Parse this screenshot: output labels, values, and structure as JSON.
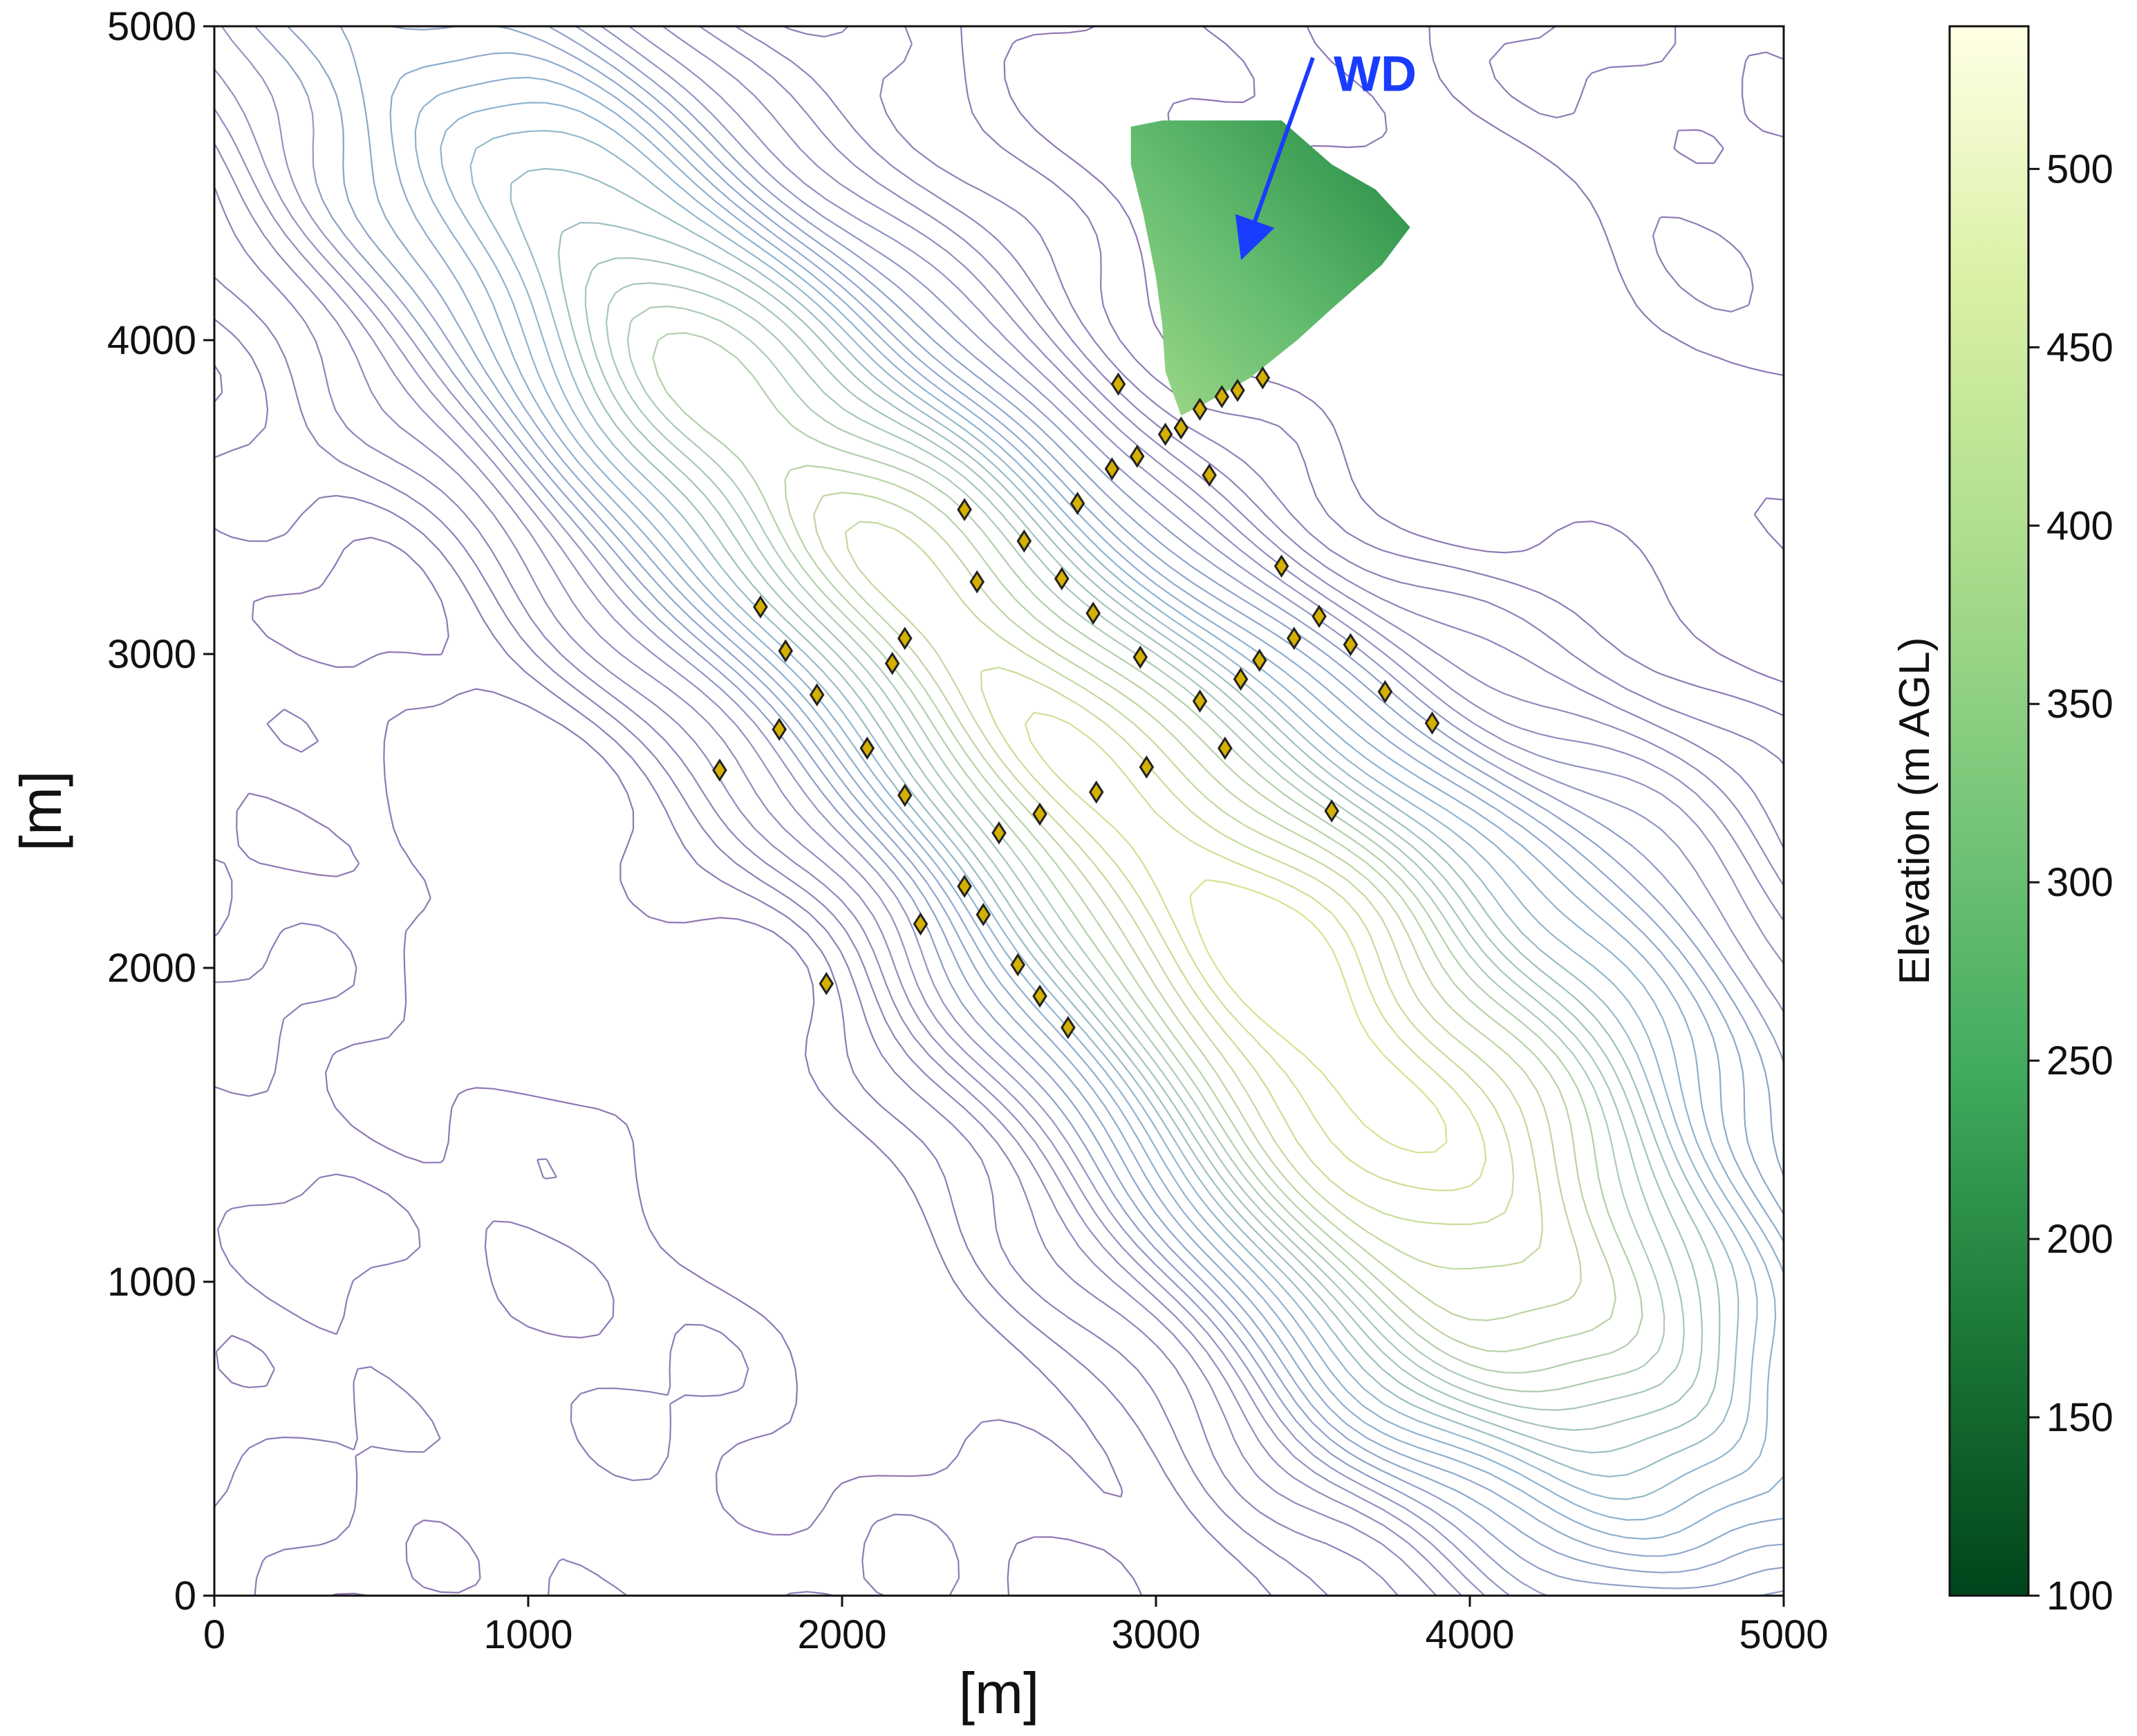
{
  "chart_data": {
    "type": "scatter",
    "xlabel": "[m]",
    "ylabel": "[m]",
    "xlim": [
      0,
      5000
    ],
    "ylim": [
      0,
      5000
    ],
    "x_ticks": [
      "0",
      "1000",
      "2000",
      "3000",
      "4000",
      "5000"
    ],
    "y_ticks": [
      "0",
      "1000",
      "2000",
      "3000",
      "4000",
      "5000"
    ],
    "grid": false,
    "colorbar": {
      "label": "Elevation (m AGL)",
      "range": [
        100,
        540
      ],
      "ticks": [
        "100",
        "150",
        "200",
        "250",
        "300",
        "350",
        "400",
        "450",
        "500"
      ],
      "colormap": [
        "#00441b",
        "#1b7837",
        "#41ab5d",
        "#78c679",
        "#addd8e",
        "#d9f0a3",
        "#ffffe5"
      ]
    },
    "annotation": {
      "text": "WD",
      "color": "#1a3cff",
      "arrow_from": [
        3500,
        4900
      ],
      "arrow_to": [
        3280,
        4280
      ]
    },
    "contours": {
      "color_low": "#7b5fa8",
      "color_mid": "#7aa6c8",
      "color_high": "#c8e07a",
      "levels": [
        110,
        125,
        140,
        155,
        170,
        185,
        200,
        215,
        230,
        245,
        260,
        275,
        290,
        305,
        320,
        335,
        350,
        365,
        380,
        395,
        410,
        425,
        440,
        455,
        470,
        485,
        500
      ]
    },
    "shaded_region": {
      "polygon": [
        [
          2920,
          4680
        ],
        [
          3020,
          4700
        ],
        [
          3400,
          4700
        ],
        [
          3560,
          4560
        ],
        [
          3700,
          4480
        ],
        [
          3810,
          4360
        ],
        [
          3720,
          4240
        ],
        [
          3560,
          4100
        ],
        [
          3450,
          4000
        ],
        [
          3300,
          3880
        ],
        [
          3160,
          3800
        ],
        [
          3080,
          3760
        ],
        [
          3030,
          3900
        ],
        [
          3020,
          4050
        ],
        [
          3000,
          4200
        ],
        [
          2960,
          4400
        ],
        [
          2920,
          4560
        ]
      ],
      "elevation_lowest": 215,
      "elevation_highest": 370
    },
    "turbines": {
      "marker": "diamond",
      "fill": "#d4b000",
      "stroke": "#222222",
      "points": [
        [
          2880,
          3860
        ],
        [
          3340,
          3880
        ],
        [
          3260,
          3840
        ],
        [
          3210,
          3820
        ],
        [
          3140,
          3780
        ],
        [
          3080,
          3720
        ],
        [
          3030,
          3700
        ],
        [
          2940,
          3630
        ],
        [
          2860,
          3590
        ],
        [
          3170,
          3570
        ],
        [
          2750,
          3480
        ],
        [
          2390,
          3460
        ],
        [
          2580,
          3360
        ],
        [
          3400,
          3280
        ],
        [
          2700,
          3240
        ],
        [
          2430,
          3230
        ],
        [
          1740,
          3150
        ],
        [
          2800,
          3130
        ],
        [
          3520,
          3120
        ],
        [
          2200,
          3050
        ],
        [
          3440,
          3050
        ],
        [
          3620,
          3030
        ],
        [
          1820,
          3010
        ],
        [
          2950,
          2990
        ],
        [
          3330,
          2980
        ],
        [
          2160,
          2970
        ],
        [
          3270,
          2920
        ],
        [
          1920,
          2870
        ],
        [
          3730,
          2880
        ],
        [
          3140,
          2850
        ],
        [
          3880,
          2780
        ],
        [
          1800,
          2760
        ],
        [
          2080,
          2700
        ],
        [
          3220,
          2700
        ],
        [
          2970,
          2640
        ],
        [
          1610,
          2630
        ],
        [
          2810,
          2560
        ],
        [
          2200,
          2550
        ],
        [
          3560,
          2500
        ],
        [
          2630,
          2490
        ],
        [
          2500,
          2430
        ],
        [
          2390,
          2260
        ],
        [
          2450,
          2170
        ],
        [
          2250,
          2140
        ],
        [
          2560,
          2010
        ],
        [
          1950,
          1950
        ],
        [
          2630,
          1910
        ],
        [
          2720,
          1810
        ]
      ]
    }
  }
}
